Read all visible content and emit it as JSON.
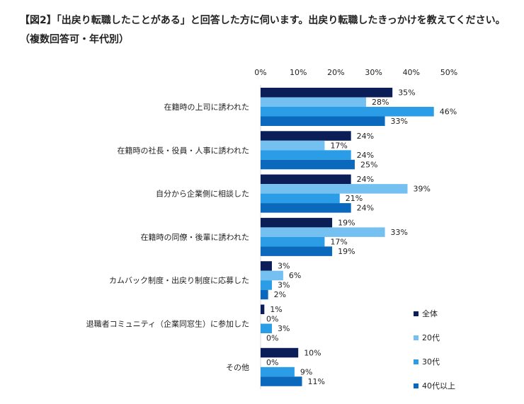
{
  "chart_data": {
    "type": "bar",
    "orientation": "horizontal",
    "title": "【図2】「出戻り転職したことがある」と回答した方に伺います。出戻り転職したきっかけを教えてください。（複数回答可・年代別）",
    "categories": [
      "在籍時の上司に誘われた",
      "在籍時の社長・役員・人事に誘われた",
      "自分から企業側に相談した",
      "在籍時の同僚・後輩に誘われた",
      "カムバック制度・出戻り制度に応募した",
      "退職者コミュニティ（企業同窓生）に参加した",
      "その他"
    ],
    "series": [
      {
        "name": "全体",
        "color": "#0b1e57",
        "values": [
          35,
          24,
          24,
          19,
          3,
          1,
          10
        ]
      },
      {
        "name": "20代",
        "color": "#74c0f0",
        "values": [
          28,
          17,
          39,
          33,
          6,
          0,
          0
        ]
      },
      {
        "name": "30代",
        "color": "#2a9de6",
        "values": [
          46,
          24,
          21,
          17,
          3,
          3,
          9
        ]
      },
      {
        "name": "40代以上",
        "color": "#0a68bd",
        "values": [
          33,
          25,
          24,
          19,
          2,
          0,
          11
        ]
      }
    ],
    "xlim": [
      0,
      50
    ],
    "xticks": [
      "0%",
      "10%",
      "20%",
      "30%",
      "40%",
      "50%"
    ],
    "value_suffix": "%",
    "grid": false,
    "legend": "bottom-right"
  }
}
